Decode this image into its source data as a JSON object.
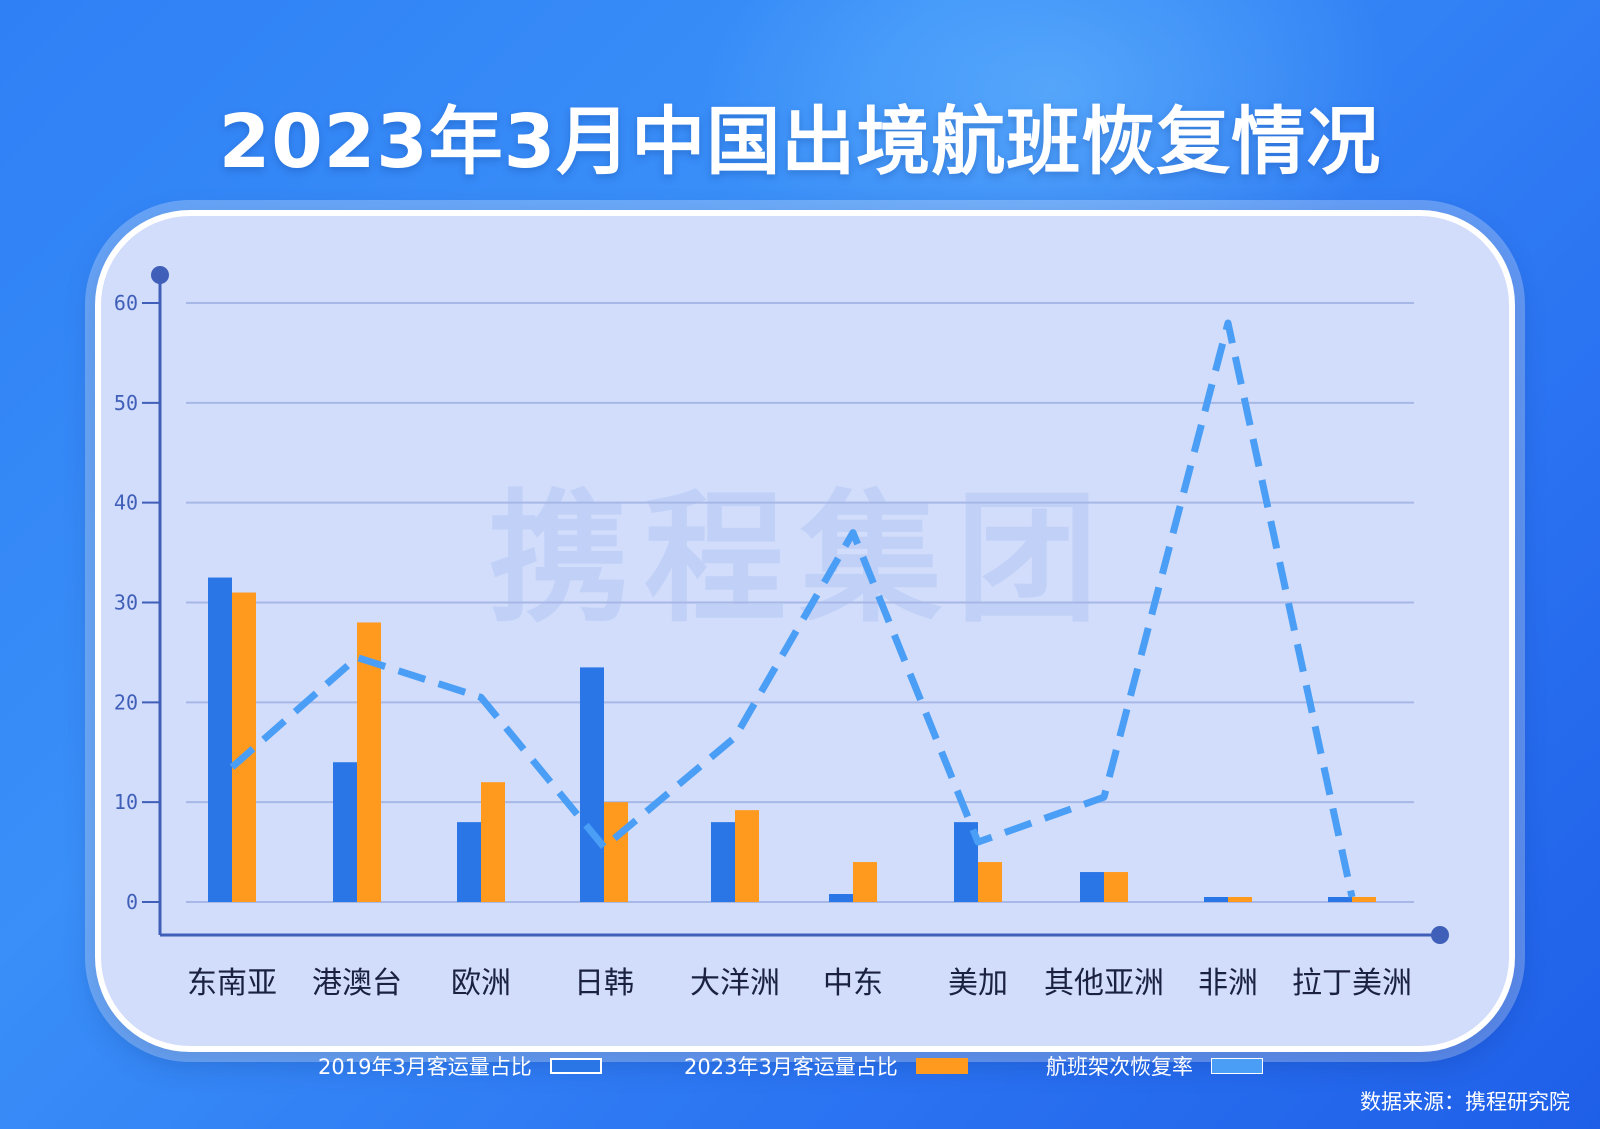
{
  "title": "2023年3月中国出境航班恢复情况",
  "watermark": "携程集团",
  "source": "数据来源：携程研究院",
  "colors": {
    "series_2019": "#2a76e6",
    "series_2023": "#ff9a1e",
    "line": "#4a9ef5",
    "axis": "#3f5fb8",
    "grid": "#a7b8e6",
    "card": "#d2dcfb"
  },
  "chart_data": {
    "type": "bar",
    "categories": [
      "东南亚",
      "港澳台",
      "欧洲",
      "日韩",
      "大洋洲",
      "中东",
      "美加",
      "其他亚洲",
      "非洲",
      "拉丁美洲"
    ],
    "yticks": [
      "0",
      "10",
      "20",
      "30",
      "40",
      "50",
      "60"
    ],
    "ylim": [
      0,
      60
    ],
    "grid": true,
    "legend_position": "bottom",
    "series": [
      {
        "name": "2019年3月客运量占比",
        "type": "bar",
        "values": [
          32.5,
          14,
          8,
          23.5,
          8,
          0.8,
          8,
          3,
          0.5,
          0.5
        ]
      },
      {
        "name": "2023年3月客运量占比",
        "type": "bar",
        "values": [
          31,
          28,
          12,
          10,
          9.2,
          4,
          4,
          3,
          0.5,
          0.5
        ]
      },
      {
        "name": "航班架次恢复率",
        "type": "line",
        "style": "dashed",
        "values": [
          13.5,
          24.5,
          20.5,
          5.5,
          16.5,
          37,
          6,
          10.5,
          58,
          0.5
        ]
      }
    ]
  }
}
